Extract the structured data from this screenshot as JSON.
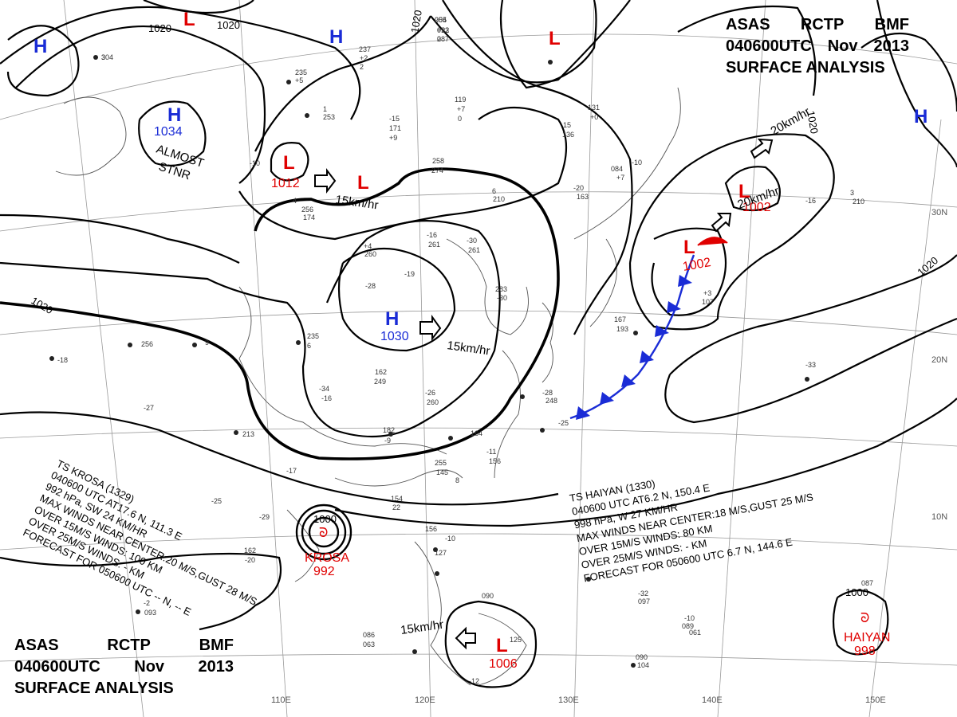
{
  "header": {
    "line1": [
      "ASAS",
      "RCTP",
      "BMF"
    ],
    "line2": [
      "040600UTC",
      "Nov",
      "2013"
    ],
    "line3": "SURFACE  ANALYSIS"
  },
  "longitude_labels": [
    "110E",
    "120E",
    "130E",
    "140E",
    "150E"
  ],
  "latitude_labels": [
    "30N",
    "20N",
    "10N"
  ],
  "pressure_systems": [
    {
      "type": "H",
      "value": ""
    },
    {
      "type": "L",
      "value": ""
    },
    {
      "type": "H",
      "value": ""
    },
    {
      "type": "L",
      "value": ""
    },
    {
      "type": "H",
      "value": "1034"
    },
    {
      "type": "L",
      "value": "1012"
    },
    {
      "type": "L",
      "value": ""
    },
    {
      "type": "H",
      "value": "1030"
    },
    {
      "type": "L",
      "value": "1002"
    },
    {
      "type": "L",
      "value": "1002"
    },
    {
      "type": "H",
      "value": ""
    },
    {
      "type": "L",
      "value": "1006"
    }
  ],
  "isobar_labels": [
    "1020",
    "1020",
    "1020",
    "1020",
    "1020",
    "1000",
    "1000"
  ],
  "annotations": {
    "almost": "ALMOST",
    "stnr": "STNR",
    "motions": [
      "15km/hr",
      "15km/hr",
      "20km/hr",
      "20km/hr",
      "15km/hr"
    ]
  },
  "krosa": {
    "lines": [
      "TS  KROSA  (1329)",
      "040600 UTC  AT17.6 N, 111.3 E",
      "992 hPa, SW  24 KM/HR",
      "MAX WINDS NEAR CENTER:20 M/S,GUST 28 M/S",
      "OVER 15M/S WINDS: 100 KM",
      "OVER 25M/S WINDS: - KM",
      "FORECAST FOR 050600 UTC -- N, -- E"
    ],
    "name": "KROSA",
    "pressure": "992"
  },
  "haiyan": {
    "lines": [
      "TS  HAIYAN  (1330)",
      "040600  UTC  AT6.2 N, 150.4 E",
      "998 hPa, W  27 KM/HR",
      "MAX WINDS NEAR CENTER:18 M/S,GUST 25 M/S",
      "OVER 15M/S WINDS: 80 KM",
      "OVER 25M/S WINDS: - KM",
      "FORECAST FOR 050600 UTC 6.7 N, 144.6 E"
    ],
    "name": "HAIYAN",
    "pressure": "998"
  },
  "colors": {
    "high": "#1a2cd6",
    "low": "#e00000",
    "cold_front": "#1a2cd6",
    "isobar": "#000000",
    "grid": "#999999"
  },
  "stations": [
    "205",
    "+22",
    "2",
    "304",
    "237",
    "+2",
    "2",
    "235",
    "+5",
    "119",
    "+7",
    "0",
    "131",
    "+0",
    "15",
    "136",
    "-15",
    "171",
    "+9",
    "1",
    "253",
    "4",
    "258",
    "274",
    "-10",
    "256",
    "174",
    "6",
    "210",
    "-20",
    "163",
    "-10",
    "084",
    "+7",
    "3",
    "210",
    "+4",
    "260",
    "-16",
    "261",
    "-30",
    "261",
    "-19",
    "283",
    "-30",
    "-28",
    "235",
    "6",
    "9",
    "256",
    "-18",
    "-34",
    "-16",
    "162",
    "249",
    "-26",
    "260",
    "-28",
    "248",
    "-25",
    "182",
    "-9",
    "164",
    "213",
    "-27",
    "-17",
    "-29",
    "167",
    "193",
    "-33",
    "+3",
    "107",
    "-25",
    "154",
    "22",
    "8",
    "255",
    "145",
    "-11",
    "156",
    "162",
    "-20",
    "156",
    "-10",
    "127",
    "-32",
    "097",
    "-2",
    "093",
    "090",
    "125",
    "090",
    "104",
    "-12",
    "086",
    "063",
    "087",
    "-10",
    "089",
    "061",
    "-16",
    "054",
    "093",
    "087",
    "3"
  ],
  "icon_names": [
    "tropical-storm-icon",
    "motion-arrow-icon",
    "cold-front-icon",
    "station-plot-icon"
  ]
}
